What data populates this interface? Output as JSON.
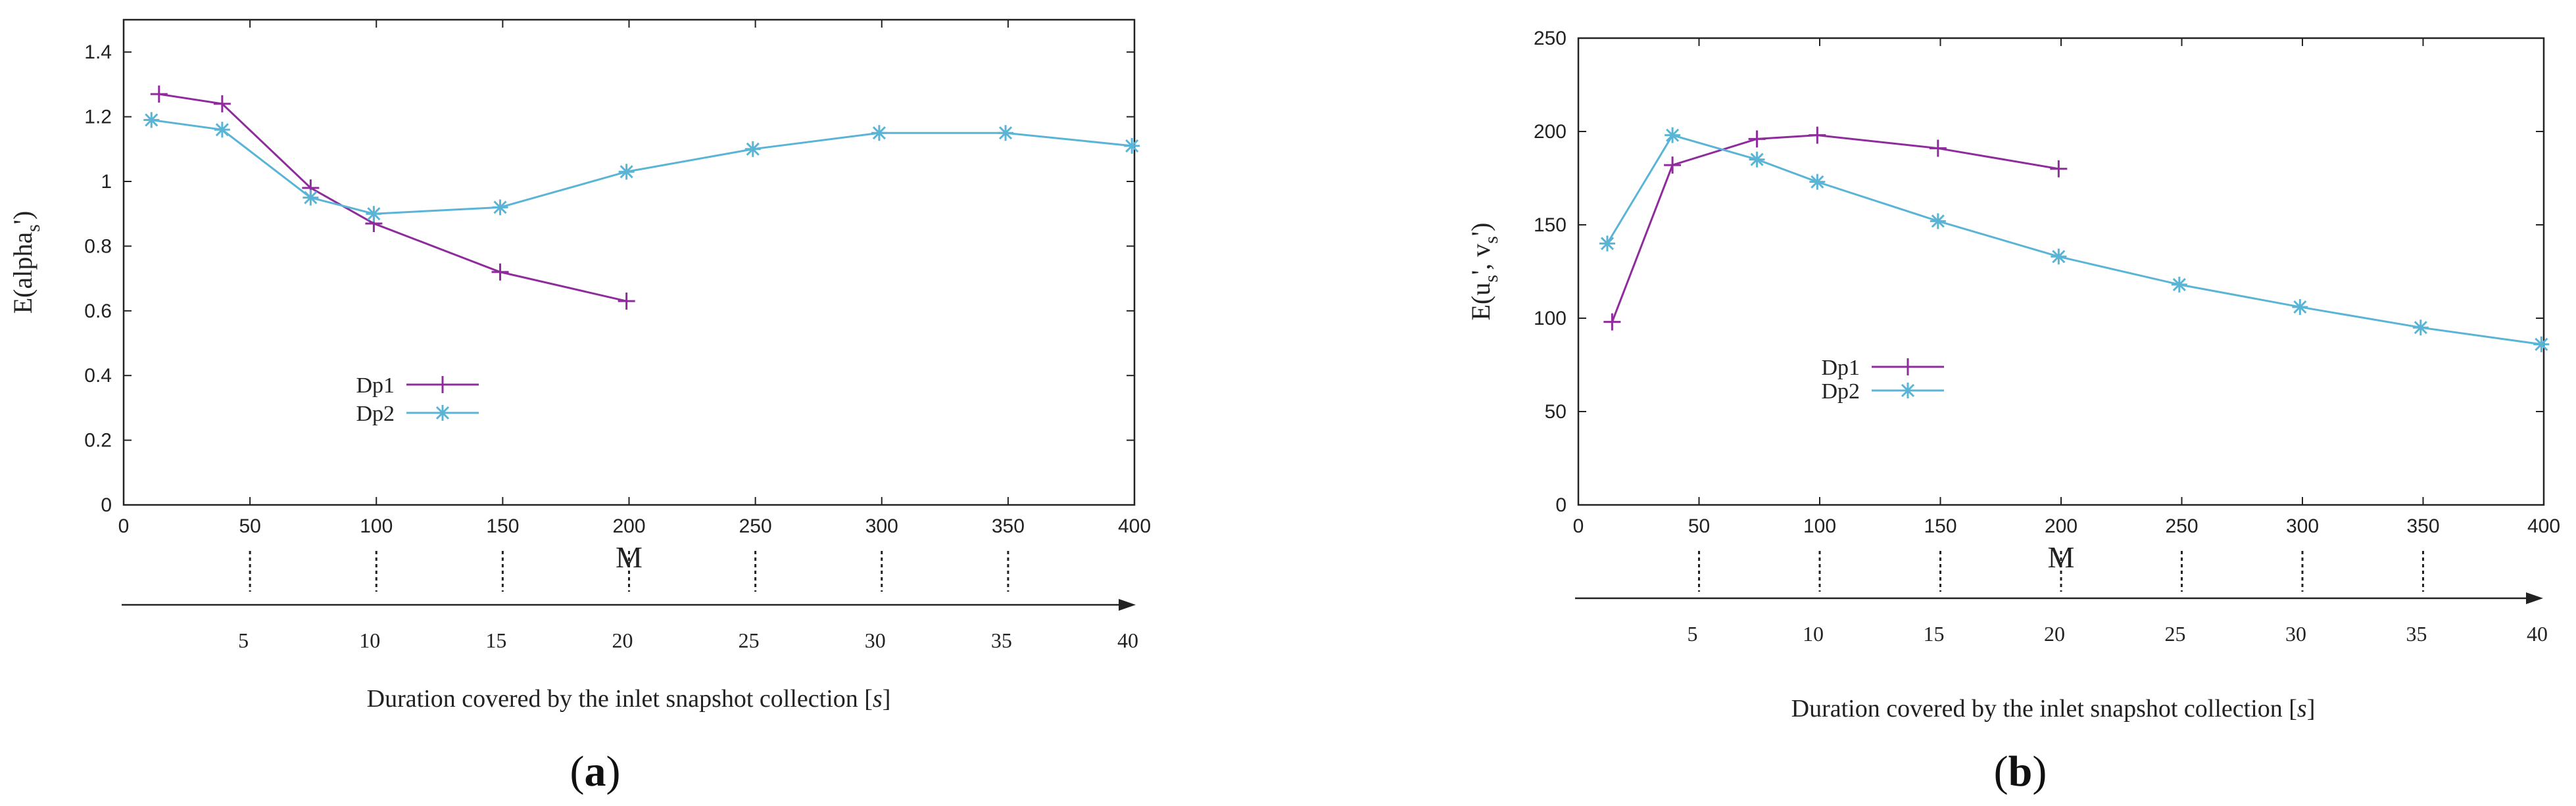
{
  "colors": {
    "Dp1": "#8e2c9c",
    "Dp2": "#5ab4d6",
    "axis": "#222222"
  },
  "chart_data": [
    {
      "type": "line",
      "caption_paren_open": "(",
      "caption_letter": "a",
      "caption_paren_close": ")",
      "xlabel": "M",
      "ylabel_main": "E(alpha",
      "ylabel_sub": "s",
      "ylabel_tail": "')",
      "xlim": [
        0,
        400
      ],
      "ylim": [
        0,
        1.5
      ],
      "xticks": [
        "0",
        "50",
        "100",
        "150",
        "200",
        "250",
        "300",
        "350",
        "400"
      ],
      "yticks": [
        "0",
        "0.2",
        "0.4",
        "0.6",
        "0.8",
        "1",
        "1.2",
        "1.4"
      ],
      "legend_position": "center-left",
      "series": [
        {
          "name": "Dp1",
          "marker": "plus",
          "x": [
            14,
            39,
            74,
            99,
            149,
            199
          ],
          "y": [
            1.27,
            1.24,
            0.98,
            0.87,
            0.72,
            0.63
          ]
        },
        {
          "name": "Dp2",
          "marker": "star",
          "x": [
            11,
            39,
            74,
            99,
            149,
            199,
            249,
            299,
            349,
            399
          ],
          "y": [
            1.19,
            1.16,
            0.95,
            0.9,
            0.92,
            1.03,
            1.1,
            1.15,
            1.15,
            1.11
          ]
        }
      ],
      "duration_axis": {
        "ticks": [
          "5",
          "10",
          "15",
          "20",
          "25",
          "30",
          "35",
          "40"
        ],
        "label_main": "Duration covered by the inlet snapshot collection [",
        "label_unit": "s",
        "label_close": "]"
      }
    },
    {
      "type": "line",
      "caption_paren_open": "(",
      "caption_letter": "b",
      "caption_paren_close": ")",
      "xlabel": "M",
      "ylabel_main": "E(u",
      "ylabel_sub": "s",
      "ylabel_mid": "', v",
      "ylabel_sub2": "s",
      "ylabel_tail": "')",
      "xlim": [
        0,
        400
      ],
      "ylim": [
        0,
        250
      ],
      "xticks": [
        "0",
        "50",
        "100",
        "150",
        "200",
        "250",
        "300",
        "350",
        "400"
      ],
      "yticks": [
        "0",
        "50",
        "100",
        "150",
        "200",
        "250"
      ],
      "legend_position": "center",
      "series": [
        {
          "name": "Dp1",
          "marker": "plus",
          "x": [
            14,
            39,
            74,
            99,
            149,
            199
          ],
          "y": [
            98,
            182,
            196,
            198,
            191,
            180
          ]
        },
        {
          "name": "Dp2",
          "marker": "star",
          "x": [
            12,
            39,
            74,
            99,
            149,
            199,
            249,
            299,
            349,
            399
          ],
          "y": [
            140,
            198,
            185,
            173,
            152,
            133,
            118,
            106,
            95,
            86
          ]
        }
      ],
      "duration_axis": {
        "ticks": [
          "5",
          "10",
          "15",
          "20",
          "25",
          "30",
          "35",
          "40"
        ],
        "label_main": "Duration covered by the inlet snapshot collection [",
        "label_unit": "s",
        "label_close": "]"
      }
    }
  ]
}
